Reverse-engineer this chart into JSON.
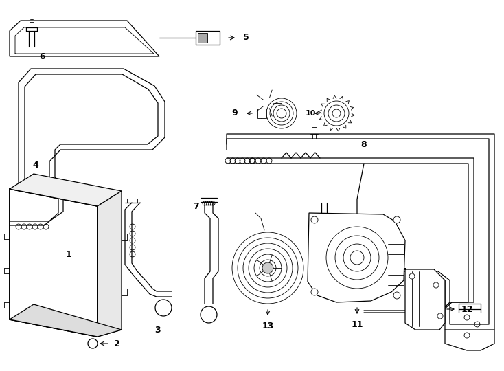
{
  "bg_color": "#ffffff",
  "lc": "#000000",
  "figsize": [
    7.34,
    5.4
  ],
  "dpi": 100,
  "lw_main": 0.9,
  "lw_thick": 1.2,
  "lw_thin": 0.6,
  "label_fontsize": 9,
  "label_fontsize_small": 8
}
